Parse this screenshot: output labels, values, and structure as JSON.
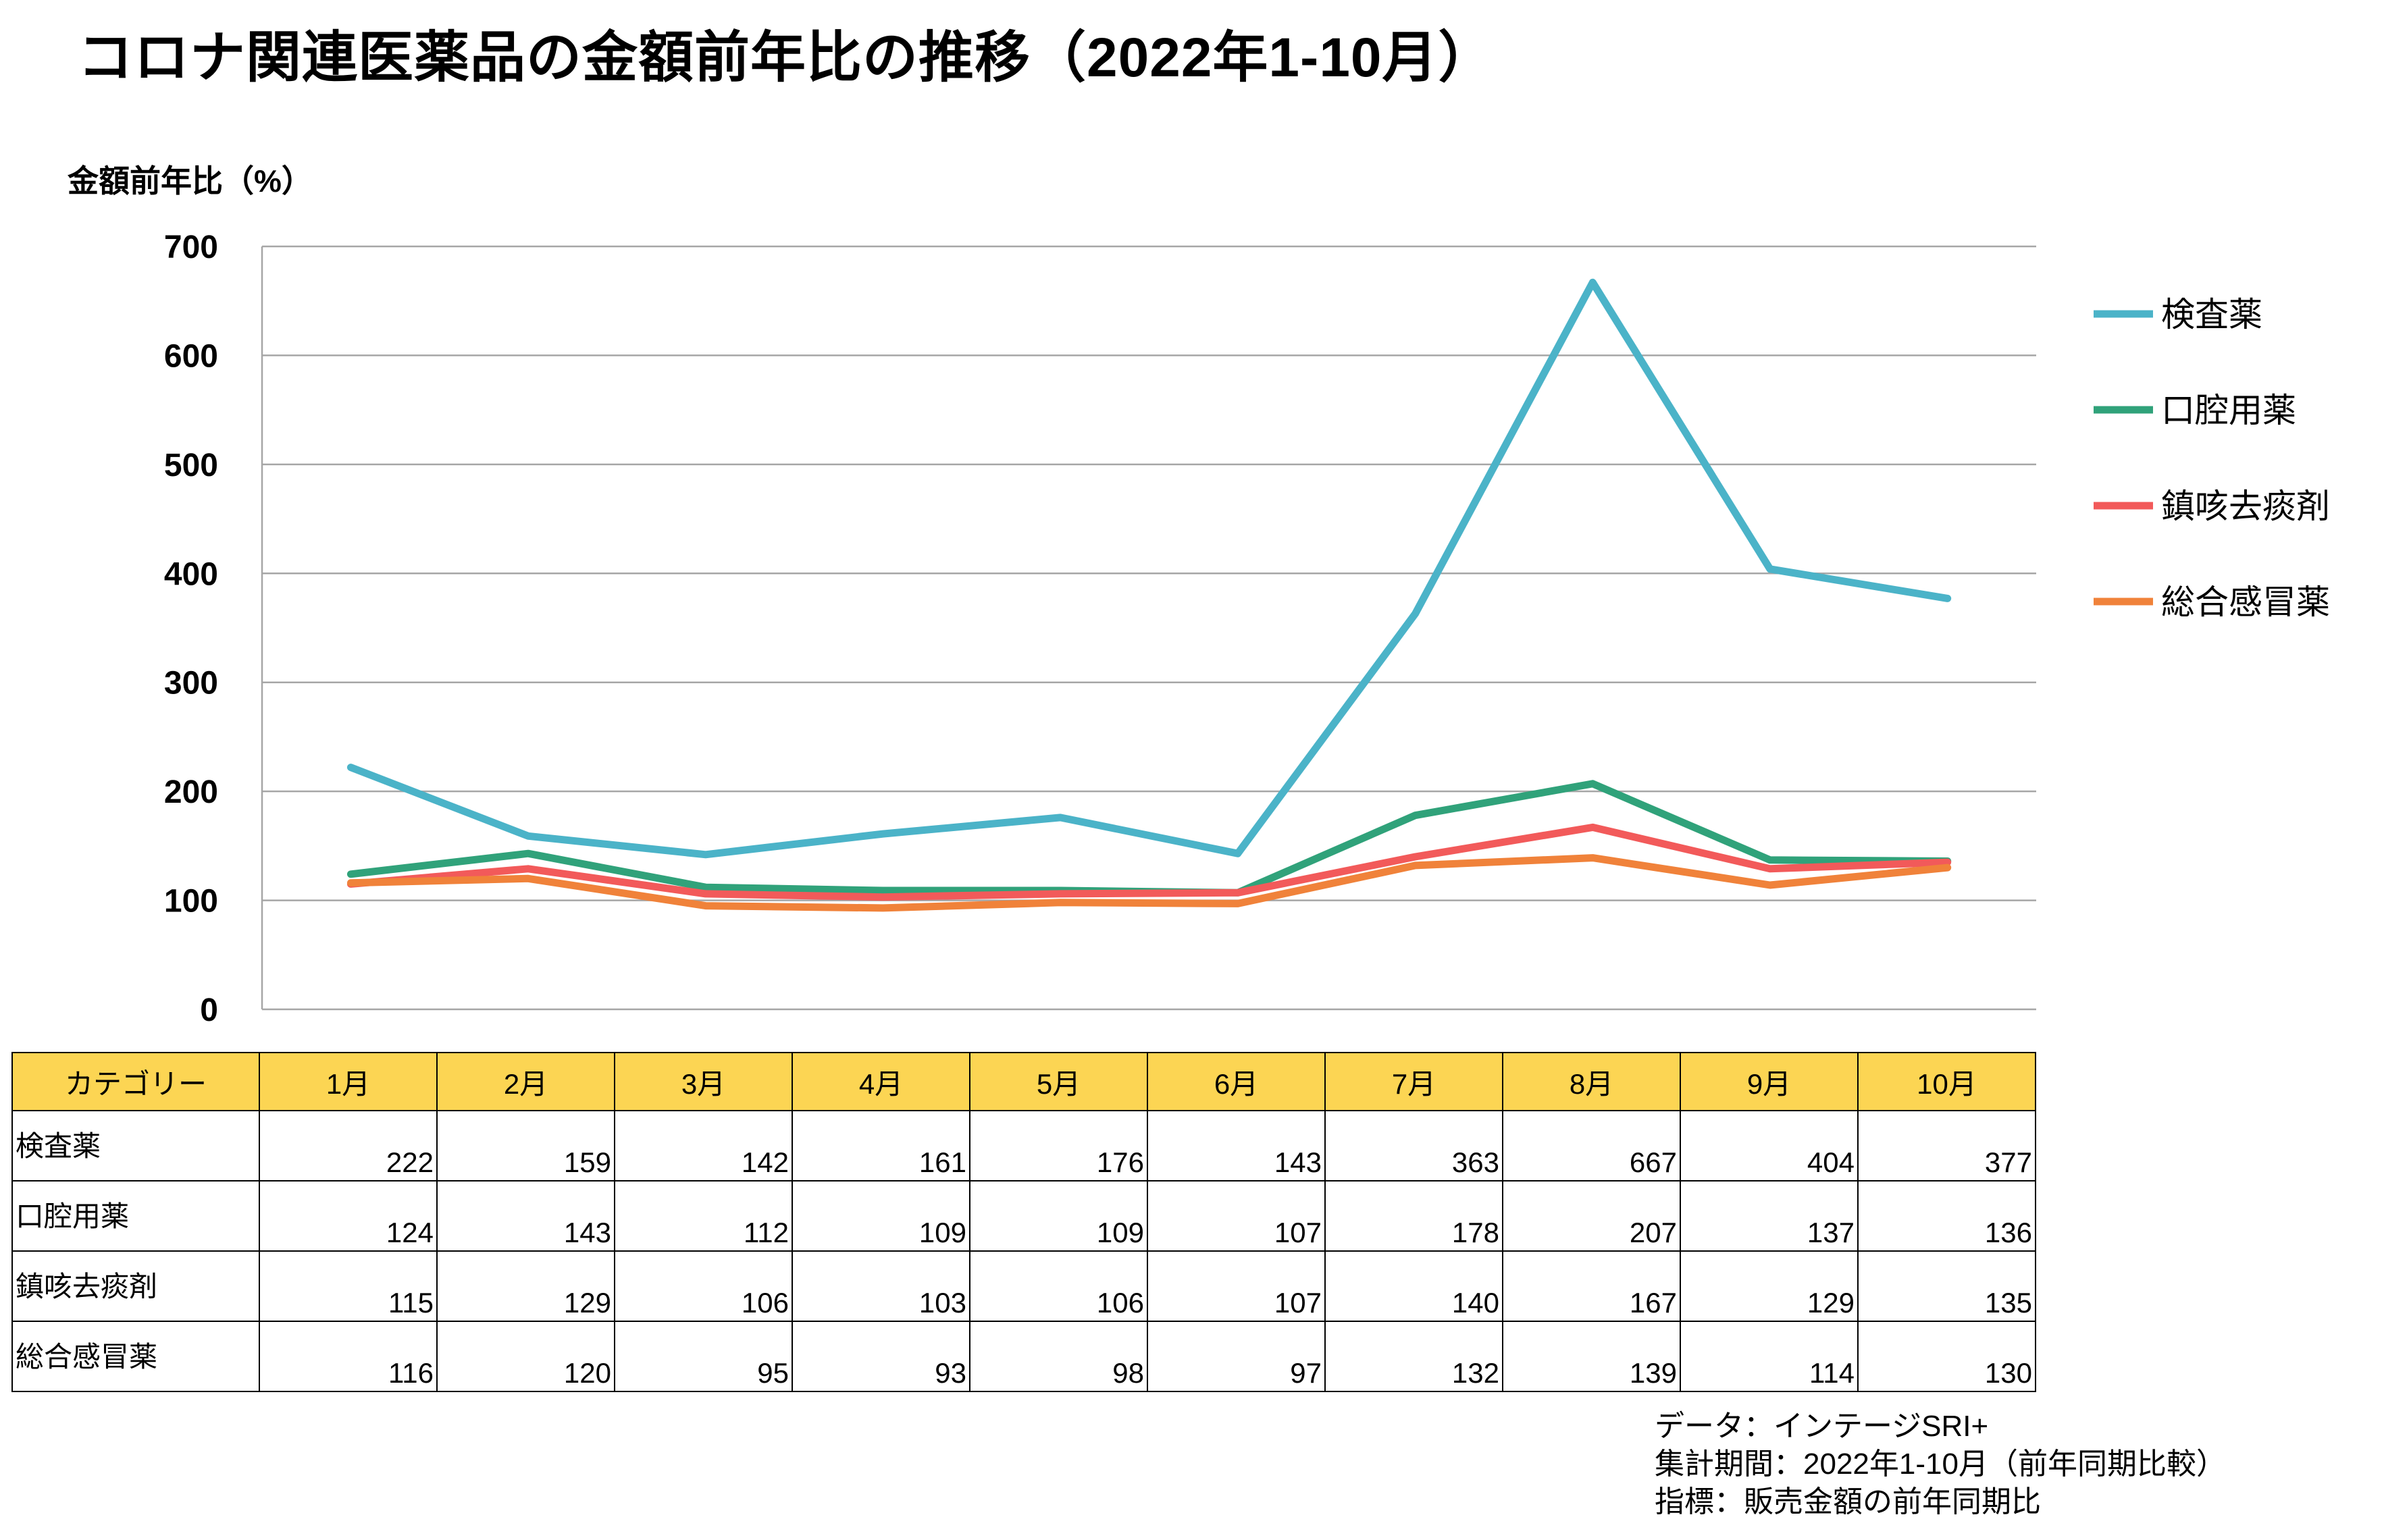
{
  "chart_data": {
    "type": "line",
    "title": "コロナ関連医薬品の金額前年比の推移（2022年1-10月）",
    "ylabel": "金額前年比（%）",
    "xlabel": "",
    "ylim": [
      0,
      700
    ],
    "yticks": [
      0,
      100,
      200,
      300,
      400,
      500,
      600,
      700
    ],
    "grid": true,
    "legend_position": "right",
    "categories": [
      "1月",
      "2月",
      "3月",
      "4月",
      "5月",
      "6月",
      "7月",
      "8月",
      "9月",
      "10月"
    ],
    "series": [
      {
        "name": "検査薬",
        "color": "#4bb3c8",
        "values": [
          222,
          159,
          142,
          161,
          176,
          143,
          363,
          667,
          404,
          377
        ]
      },
      {
        "name": "口腔用薬",
        "color": "#30a27a",
        "values": [
          124,
          143,
          112,
          109,
          109,
          107,
          178,
          207,
          137,
          136
        ]
      },
      {
        "name": "鎮咳去痰剤",
        "color": "#f25a5a",
        "values": [
          115,
          129,
          106,
          103,
          106,
          107,
          140,
          167,
          129,
          135
        ]
      },
      {
        "name": "総合感冒薬",
        "color": "#f0823a",
        "values": [
          116,
          120,
          95,
          93,
          98,
          97,
          132,
          139,
          114,
          130
        ]
      }
    ]
  },
  "table": {
    "header_label": "カテゴリー",
    "header_color": "#fcd553"
  },
  "footnotes": [
    "データ：インテージSRI+",
    "集計期間：2022年1-10月（前年同期比較）",
    "指標：販売金額の前年同期比"
  ]
}
